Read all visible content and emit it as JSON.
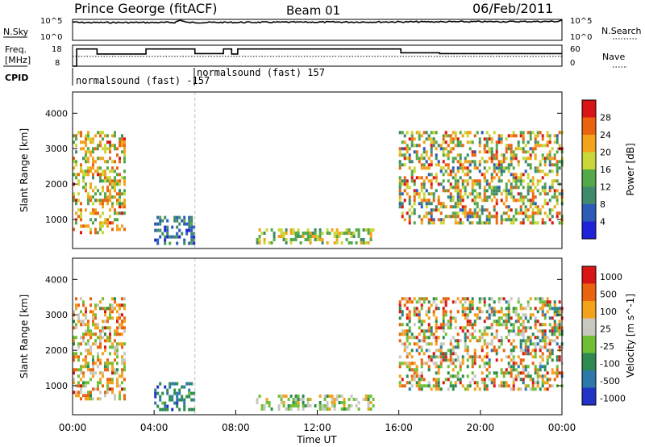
{
  "header": {
    "station": "Prince George (fitACF)",
    "beam": "Beam 01",
    "date": "06/Feb/2011"
  },
  "chart_data": [
    {
      "type": "line",
      "panel": "noise",
      "left_label": "N.Sky",
      "right_label": "N.Search",
      "left_ticks": [
        "10^5",
        "10^0"
      ],
      "right_ticks": [
        "10^5",
        "10^0"
      ],
      "xlim": [
        0,
        24
      ],
      "series": [
        {
          "name": "N.Sky",
          "x": [
            0,
            0.3,
            5.0,
            5.3,
            5.6,
            23.8,
            24
          ],
          "y": [
            0.88,
            0.85,
            0.85,
            0.97,
            0.85,
            0.9,
            0.97
          ]
        }
      ]
    },
    {
      "type": "line",
      "panel": "frequency",
      "left_label_lines": [
        "Freq.",
        "[MHz]"
      ],
      "right_label": "Nave",
      "left_ticks": [
        "18",
        "8"
      ],
      "right_ticks": [
        "60",
        "0"
      ],
      "ylim_left": [
        8,
        18
      ],
      "ylim_right": [
        0,
        60
      ],
      "xlim": [
        0,
        24
      ],
      "series": [
        {
          "name": "Freq",
          "x": [
            0,
            0.2,
            0.2,
            1.2,
            1.2,
            3.6,
            3.6,
            6.0,
            6.0,
            7.4,
            7.4,
            7.8,
            7.8,
            8.1,
            8.1,
            16.1,
            16.1,
            18.0,
            18.0,
            24
          ],
          "y": [
            8,
            8,
            16.2,
            16.2,
            13.8,
            13.8,
            16.2,
            16.2,
            14.0,
            14.0,
            16.2,
            16.2,
            13.8,
            13.8,
            16.2,
            16.2,
            14.4,
            14.4,
            14.0,
            14.0
          ]
        },
        {
          "name": "Nave",
          "x": [
            0,
            24
          ],
          "y": [
            28,
            28
          ]
        }
      ]
    },
    {
      "type": "text",
      "panel": "cpid",
      "label": "CPID",
      "segments": [
        {
          "x0": 0,
          "text": "normalsound (fast) -157"
        },
        {
          "x0": 6.0,
          "text": "normalsound (fast) 157"
        }
      ]
    },
    {
      "type": "heatmap",
      "panel": "power",
      "ylabel": "Slant Range [km]",
      "yticks": [
        1000,
        2000,
        3000,
        4000
      ],
      "ylim": [
        180,
        4600
      ],
      "xlim": [
        0,
        24
      ],
      "colorbar_label": "Power [dB]",
      "colorbar_ticks": [
        4,
        8,
        12,
        16,
        20,
        24,
        28
      ],
      "colorbar_colors": [
        "#1f22d8",
        "#2c5cb8",
        "#3f8a6a",
        "#55a84a",
        "#c9d838",
        "#f3a21c",
        "#ea6410",
        "#d81616"
      ],
      "regions": [
        {
          "x": [
            0.0,
            2.5
          ],
          "y": [
            600,
            3500
          ],
          "band": [
            0.35,
            0.9
          ]
        },
        {
          "x": [
            4.0,
            6.0
          ],
          "y": [
            300,
            1100
          ],
          "band": [
            0.1,
            0.4
          ]
        },
        {
          "x": [
            9.0,
            14.8
          ],
          "y": [
            300,
            750
          ],
          "band": [
            0.3,
            0.7
          ]
        },
        {
          "x": [
            16.0,
            24.0
          ],
          "y": [
            900,
            3500
          ],
          "band": [
            0.2,
            0.95
          ]
        }
      ]
    },
    {
      "type": "heatmap",
      "panel": "velocity",
      "ylabel": "Slant Range [km]",
      "yticks": [
        1000,
        2000,
        3000,
        4000
      ],
      "ylim": [
        180,
        4600
      ],
      "xlim": [
        0,
        24
      ],
      "xticks": [
        "00:00",
        "04:00",
        "08:00",
        "12:00",
        "16:00",
        "20:00",
        "00:00"
      ],
      "xlabel": "Time UT",
      "colorbar_label": "Velocity [m s^-1]",
      "colorbar_ticks": [
        1000,
        500,
        100,
        25,
        -25,
        -100,
        -500,
        -1000
      ],
      "colorbar_colors": [
        "#2233c8",
        "#2c78a8",
        "#2e8a50",
        "#6fc036",
        "#c8c8c0",
        "#f3a21c",
        "#ea6410",
        "#d81616"
      ],
      "regions": [
        {
          "x": [
            0.0,
            2.5
          ],
          "y": [
            600,
            3500
          ],
          "band": [
            0.35,
            0.9
          ]
        },
        {
          "x": [
            4.0,
            6.0
          ],
          "y": [
            300,
            1100
          ],
          "band": [
            0.1,
            0.4
          ]
        },
        {
          "x": [
            9.0,
            14.8
          ],
          "y": [
            300,
            750
          ],
          "band": [
            0.3,
            0.7
          ]
        },
        {
          "x": [
            16.0,
            24.0
          ],
          "y": [
            900,
            3500
          ],
          "band": [
            0.2,
            0.95
          ]
        }
      ]
    }
  ]
}
